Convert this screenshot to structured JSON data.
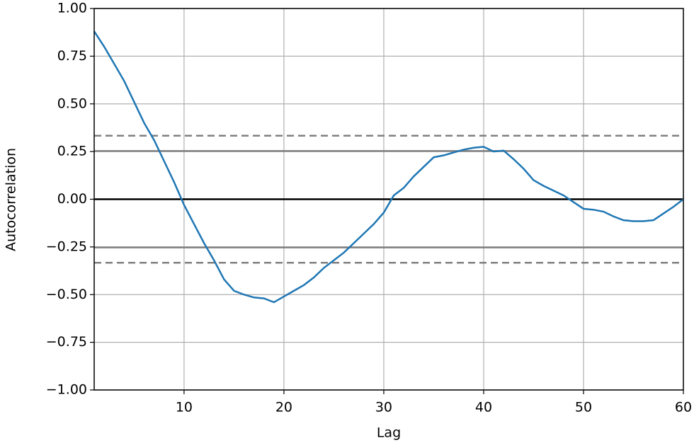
{
  "chart_data": {
    "type": "line",
    "xlabel": "Lag",
    "ylabel": "Autocorrelation",
    "x": [
      1,
      2,
      3,
      4,
      5,
      6,
      7,
      8,
      9,
      10,
      11,
      12,
      13,
      14,
      15,
      16,
      17,
      18,
      19,
      20,
      21,
      22,
      23,
      24,
      25,
      26,
      27,
      28,
      29,
      30,
      31,
      32,
      33,
      34,
      35,
      36,
      37,
      38,
      39,
      40,
      41,
      42,
      43,
      44,
      45,
      46,
      47,
      48,
      49,
      50,
      51,
      52,
      53,
      54,
      55,
      56,
      57,
      58,
      59,
      60
    ],
    "series": [
      {
        "color": "#1f77b4",
        "values": [
          0.88,
          0.8,
          0.71,
          0.62,
          0.51,
          0.4,
          0.31,
          0.2,
          0.09,
          -0.03,
          -0.13,
          -0.23,
          -0.32,
          -0.42,
          -0.48,
          -0.5,
          -0.515,
          -0.52,
          -0.54,
          -0.51,
          -0.48,
          -0.45,
          -0.41,
          -0.36,
          -0.32,
          -0.28,
          -0.23,
          -0.18,
          -0.13,
          -0.07,
          0.02,
          0.06,
          0.12,
          0.17,
          0.22,
          0.23,
          0.245,
          0.26,
          0.27,
          0.275,
          0.25,
          0.255,
          0.21,
          0.16,
          0.1,
          0.07,
          0.045,
          0.02,
          -0.015,
          -0.05,
          -0.055,
          -0.065,
          -0.09,
          -0.11,
          -0.115,
          -0.115,
          -0.11,
          -0.075,
          -0.04,
          0.0
        ]
      }
    ],
    "hlines": [
      {
        "value": 0.333,
        "style": "dashed",
        "color": "#808080"
      },
      {
        "value": 0.253,
        "style": "solid",
        "color": "#808080"
      },
      {
        "value": 0,
        "style": "solid",
        "color": "#000000"
      },
      {
        "value": -0.253,
        "style": "solid",
        "color": "#808080"
      },
      {
        "value": -0.333,
        "style": "dashed",
        "color": "#808080"
      }
    ],
    "xlim": [
      1,
      60
    ],
    "ylim": [
      -1,
      1
    ],
    "xticks": [
      10,
      20,
      30,
      40,
      50,
      60
    ],
    "yticks": [
      {
        "value": 1,
        "label": "1.00"
      },
      {
        "value": 0.75,
        "label": "0.75"
      },
      {
        "value": 0.5,
        "label": "0.50"
      },
      {
        "value": 0.25,
        "label": "0.25"
      },
      {
        "value": 0,
        "label": "0.00"
      },
      {
        "value": -0.25,
        "label": "−0.25"
      },
      {
        "value": -0.5,
        "label": "−0.50"
      },
      {
        "value": -0.75,
        "label": "−0.75"
      },
      {
        "value": -1,
        "label": "−1.00"
      }
    ],
    "grid": true
  }
}
